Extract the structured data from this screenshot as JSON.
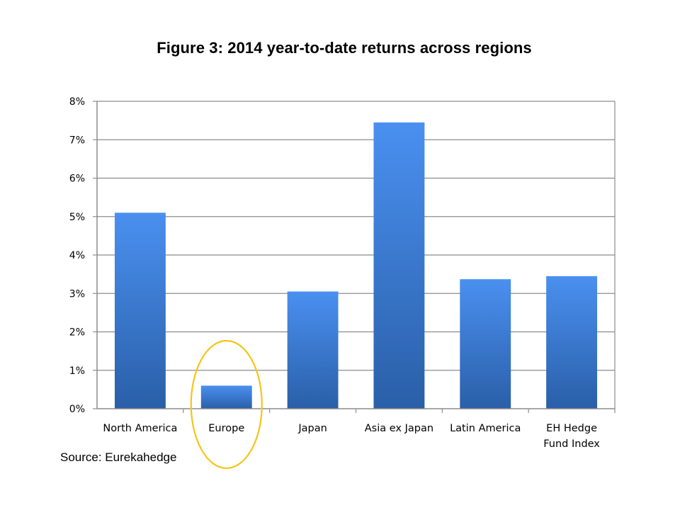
{
  "chart_data": {
    "type": "bar",
    "title": "Figure 3: 2014 year-to-date returns across regions",
    "xlabel": "",
    "ylabel": "",
    "ylim": [
      0,
      8
    ],
    "y_ticks": [
      "0%",
      "1%",
      "2%",
      "3%",
      "4%",
      "5%",
      "6%",
      "7%",
      "8%"
    ],
    "categories": [
      [
        "North America"
      ],
      [
        "Europe"
      ],
      [
        "Japan"
      ],
      [
        "Asia ex Japan"
      ],
      [
        "Latin America"
      ],
      [
        "EH Hedge",
        "Fund Index"
      ]
    ],
    "values": [
      5.1,
      0.6,
      3.05,
      7.45,
      3.37,
      3.45
    ],
    "unit": "%",
    "grid": true,
    "bar_color_top": "#4a90f0",
    "bar_color_bottom": "#2a5fa8",
    "highlight": {
      "category_index": 1,
      "shape": "ellipse",
      "color": "#f5c518"
    }
  },
  "source": "Source: Eurekahedge"
}
